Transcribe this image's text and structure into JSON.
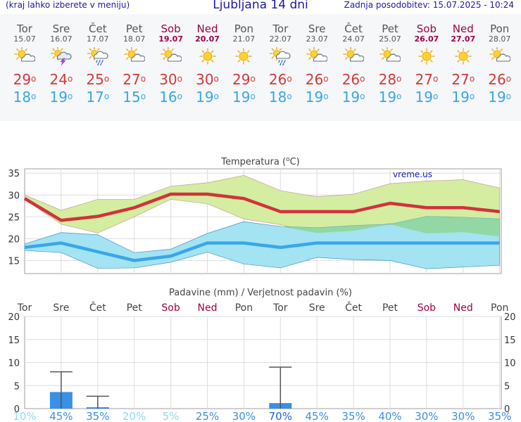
{
  "header": {
    "menu_hint": "(kraj lahko izberete v meniju)",
    "title": "Ljubljana 14 dni",
    "updated": "Zadnja posodobitev: 15.07.2025 - 10:24"
  },
  "days": [
    {
      "name": "Tor",
      "date": "15.07",
      "weekend": false,
      "icon": "partly-cloudy-icon",
      "tmax": "29",
      "tmin": "18",
      "precip_prob": "10%"
    },
    {
      "name": "Sre",
      "date": "16.07",
      "weekend": false,
      "icon": "thunderstorm-icon",
      "tmax": "24",
      "tmin": "19",
      "precip_prob": "45%"
    },
    {
      "name": "Čet",
      "date": "17.07",
      "weekend": false,
      "icon": "sun-rain-icon",
      "tmax": "25",
      "tmin": "17",
      "precip_prob": "35%"
    },
    {
      "name": "Pet",
      "date": "18.07",
      "weekend": false,
      "icon": "partly-cloudy-icon",
      "tmax": "27",
      "tmin": "15",
      "precip_prob": "20%"
    },
    {
      "name": "Sob",
      "date": "19.07",
      "weekend": true,
      "icon": "partly-cloudy-icon",
      "tmax": "30",
      "tmin": "16",
      "precip_prob": "5%"
    },
    {
      "name": "Ned",
      "date": "20.07",
      "weekend": true,
      "icon": "sunny-icon",
      "tmax": "30",
      "tmin": "19",
      "precip_prob": "25%"
    },
    {
      "name": "Pon",
      "date": "21.07",
      "weekend": false,
      "icon": "sunny-icon",
      "tmax": "29",
      "tmin": "19",
      "precip_prob": "30%"
    },
    {
      "name": "Tor",
      "date": "22.07",
      "weekend": false,
      "icon": "sun-rain-icon",
      "tmax": "26",
      "tmin": "18",
      "precip_prob": "70%"
    },
    {
      "name": "Sre",
      "date": "23.07",
      "weekend": false,
      "icon": "partly-cloudy-icon",
      "tmax": "26",
      "tmin": "19",
      "precip_prob": "45%"
    },
    {
      "name": "Čet",
      "date": "24.07",
      "weekend": false,
      "icon": "partly-cloudy-icon",
      "tmax": "26",
      "tmin": "19",
      "precip_prob": "35%"
    },
    {
      "name": "Pet",
      "date": "25.07",
      "weekend": false,
      "icon": "partly-cloudy-icon",
      "tmax": "28",
      "tmin": "19",
      "precip_prob": "40%"
    },
    {
      "name": "Sob",
      "date": "26.07",
      "weekend": true,
      "icon": "sunny-icon",
      "tmax": "27",
      "tmin": "19",
      "precip_prob": "30%"
    },
    {
      "name": "Ned",
      "date": "27.07",
      "weekend": true,
      "icon": "sunny-icon",
      "tmax": "27",
      "tmin": "19",
      "precip_prob": "30%"
    },
    {
      "name": "Pon",
      "date": "28.07",
      "weekend": false,
      "icon": "partly-cloudy-icon",
      "tmax": "26",
      "tmin": "19",
      "precip_prob": "35%"
    }
  ],
  "colors": {
    "max_line": "#d2323c",
    "min_line": "#3aa6ea",
    "max_band": "#d4eda0",
    "min_band": "#a3e3f2",
    "overlap_band": "#8fd596",
    "bar": "#3a8fe6",
    "weekend": "#a0004a",
    "prob_low": "#8fd8f4",
    "prob_high": "#1f5fd6"
  },
  "chart_data": [
    {
      "type": "line",
      "title": "Temperatura (°C)",
      "title_main": "Temperatura (",
      "title_unit": "C)",
      "watermark": "vreme.us",
      "categories": [
        "15.07",
        "16.07",
        "17.07",
        "18.07",
        "19.07",
        "20.07",
        "21.07",
        "22.07",
        "23.07",
        "24.07",
        "25.07",
        "26.07",
        "27.07",
        "28.07"
      ],
      "ylim": [
        12,
        36
      ],
      "yticks": [
        "35",
        "30",
        "25",
        "20",
        "15"
      ],
      "series": [
        {
          "name": "max",
          "values": [
            29.2,
            24.2,
            25.1,
            27.1,
            30.2,
            30.2,
            29.2,
            26.2,
            26.2,
            26.2,
            28.1,
            27.1,
            27.1,
            26.2
          ],
          "band_high": [
            30,
            26.5,
            29,
            29,
            32,
            32.8,
            34.5,
            31,
            29.6,
            30.2,
            32.6,
            33.2,
            33.5,
            31.6
          ],
          "band_low": [
            29,
            23.3,
            21.3,
            25,
            29,
            28,
            24.5,
            23.2,
            21.3,
            21.8,
            23.5,
            21.2,
            21.5,
            20.5
          ]
        },
        {
          "name": "min",
          "values": [
            18,
            19,
            17,
            15,
            16,
            19,
            19,
            18,
            19,
            19,
            19,
            19,
            19,
            19
          ],
          "band_high": [
            18.8,
            21.4,
            20.9,
            16.8,
            17.6,
            21.2,
            23.9,
            22.8,
            22.5,
            23,
            23.3,
            25.1,
            24.9,
            24.5
          ],
          "band_low": [
            17.3,
            16.8,
            13.2,
            13.3,
            14.6,
            16.9,
            14.2,
            13.3,
            15.7,
            15.2,
            15,
            13.1,
            13.5,
            13.9
          ]
        }
      ]
    },
    {
      "type": "bar",
      "title": "Padavine (mm) / Verjetnost padavin (%)",
      "ylim": [
        0,
        20
      ],
      "yticks": [
        "20",
        "15",
        "10",
        "5",
        "0"
      ],
      "values": [
        0,
        3.6,
        0.3,
        0,
        0,
        0,
        0,
        1.2,
        0,
        0,
        0,
        0,
        0,
        0
      ],
      "error_high": [
        0,
        8,
        2.7,
        0,
        0,
        0,
        0,
        9,
        0,
        0,
        0,
        0,
        0,
        0
      ],
      "error_low": [
        0,
        0,
        0,
        0,
        0,
        0,
        0,
        0,
        0,
        0,
        0,
        0,
        0,
        0
      ],
      "probabilities": [
        10,
        45,
        35,
        20,
        5,
        25,
        30,
        70,
        45,
        35,
        40,
        30,
        30,
        35
      ]
    }
  ]
}
